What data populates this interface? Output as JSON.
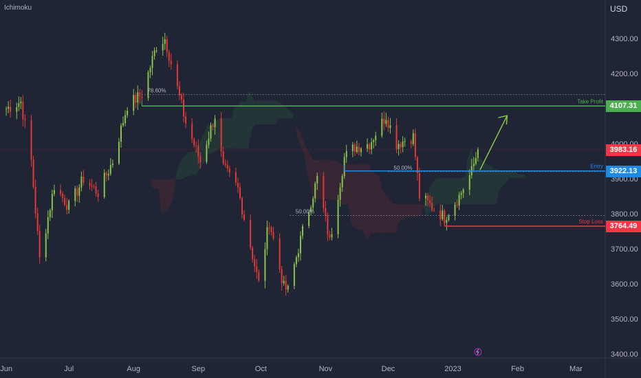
{
  "indicator_label": "Ichimoku",
  "currency": "USD",
  "colors": {
    "background": "#1f2535",
    "up": "#8bc34a",
    "down": "#e53935",
    "take_profit": "#4caf50",
    "entry": "#1e88e5",
    "stop_loss": "#f23645",
    "current": "#f23645",
    "cloud_bull": "#4caf50",
    "cloud_bear": "#e53935",
    "arrow": "#8bc34a"
  },
  "chart_data": {
    "type": "candlestick",
    "ylim": [
      3400,
      4350
    ],
    "y_ticks": [
      "4300.00",
      "4200.00",
      "4100.00",
      "4000.00",
      "3900.00",
      "3800.00",
      "3700.00",
      "3600.00",
      "3500.00",
      "3400.00"
    ],
    "y_tick_values": [
      4300,
      4200,
      4100,
      4000,
      3900,
      3800,
      3700,
      3600,
      3500,
      3400
    ],
    "x_ticks": [
      "Jun",
      "Jul",
      "Aug",
      "Sep",
      "Oct",
      "Nov",
      "Dec",
      "2023",
      "Feb",
      "Mar"
    ],
    "close_path": [
      [
        "2022-06-01",
        4100
      ],
      [
        "2022-06-08",
        4120
      ],
      [
        "2022-06-13",
        3950
      ],
      [
        "2022-06-17",
        3670
      ],
      [
        "2022-06-24",
        3880
      ],
      [
        "2022-07-01",
        3820
      ],
      [
        "2022-07-08",
        3900
      ],
      [
        "2022-07-15",
        3860
      ],
      [
        "2022-07-22",
        3950
      ],
      [
        "2022-07-29",
        4110
      ],
      [
        "2022-08-05",
        4140
      ],
      [
        "2022-08-12",
        4280
      ],
      [
        "2022-08-16",
        4300
      ],
      [
        "2022-08-19",
        4230
      ],
      [
        "2022-08-26",
        4060
      ],
      [
        "2022-09-02",
        3950
      ],
      [
        "2022-09-09",
        4080
      ],
      [
        "2022-09-13",
        3930
      ],
      [
        "2022-09-20",
        3870
      ],
      [
        "2022-09-30",
        3600
      ],
      [
        "2022-10-05",
        3780
      ],
      [
        "2022-10-12",
        3590
      ],
      [
        "2022-10-14",
        3580
      ],
      [
        "2022-10-21",
        3750
      ],
      [
        "2022-10-28",
        3900
      ],
      [
        "2022-11-03",
        3720
      ],
      [
        "2022-11-10",
        3960
      ],
      [
        "2022-11-15",
        3990
      ],
      [
        "2022-11-22",
        4000
      ],
      [
        "2022-11-30",
        4080
      ],
      [
        "2022-12-05",
        4000
      ],
      [
        "2022-12-13",
        4020
      ],
      [
        "2022-12-16",
        3850
      ],
      [
        "2022-12-22",
        3820
      ],
      [
        "2022-12-28",
        3790
      ],
      [
        "2023-01-04",
        3850
      ],
      [
        "2023-01-10",
        3920
      ],
      [
        "2023-01-13",
        3983.16
      ]
    ],
    "levels": [
      {
        "label": "Take Profit",
        "value": 4107.31,
        "tag": "4107.31",
        "start": "2022-08-05"
      },
      {
        "label": "Entry",
        "value": 3922.13,
        "tag": "3922.13",
        "start": "2022-11-10"
      },
      {
        "label": "Stop Loss",
        "value": 3764.49,
        "tag": "3764.49",
        "start": "2022-12-28"
      }
    ],
    "current_price": {
      "value": 3983.16,
      "tag": "3983.16"
    },
    "fib_levels": [
      {
        "label": "78.60%",
        "value": 4140,
        "start": "2022-08-05"
      },
      {
        "label": "50.00%",
        "value": 3920,
        "start": "2022-12-01"
      },
      {
        "label": "50.00%",
        "value": 3795,
        "start": "2022-10-15"
      }
    ],
    "projection": {
      "from": [
        "2023-01-14",
        3925
      ],
      "to": [
        "2023-01-27",
        4080
      ]
    }
  }
}
